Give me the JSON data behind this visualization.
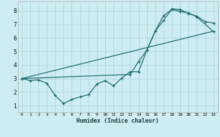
{
  "xlabel": "Humidex (Indice chaleur)",
  "bg_color": "#ceedf2",
  "grid_color": "#b0d8e0",
  "line_color": "#1a6b6b",
  "xlim": [
    -0.5,
    23.5
  ],
  "ylim": [
    0.5,
    8.7
  ],
  "xticks": [
    0,
    1,
    2,
    3,
    4,
    5,
    6,
    7,
    8,
    9,
    10,
    11,
    12,
    13,
    14,
    15,
    16,
    17,
    18,
    19,
    20,
    21,
    22,
    23
  ],
  "yticks": [
    1,
    2,
    3,
    4,
    5,
    6,
    7,
    8
  ],
  "line1_x": [
    0,
    23
  ],
  "line1_y": [
    3.0,
    6.5
  ],
  "line2_x": [
    0,
    1,
    2,
    3,
    4,
    5,
    6,
    7,
    8,
    9,
    10,
    11,
    12,
    13,
    14,
    15,
    16,
    17,
    18,
    19,
    20,
    21,
    22,
    23
  ],
  "line2_y": [
    3.0,
    2.85,
    2.9,
    2.65,
    1.75,
    1.15,
    1.45,
    1.65,
    1.8,
    2.6,
    2.85,
    2.45,
    3.05,
    3.5,
    3.5,
    5.1,
    6.5,
    7.3,
    8.15,
    8.1,
    7.8,
    7.6,
    7.2,
    7.1
  ],
  "line3_x": [
    0,
    13,
    14,
    15,
    16,
    17,
    18,
    19,
    20,
    21,
    23
  ],
  "line3_y": [
    3.0,
    3.3,
    4.25,
    5.1,
    6.5,
    7.65,
    8.1,
    7.95,
    7.85,
    7.55,
    6.45
  ]
}
